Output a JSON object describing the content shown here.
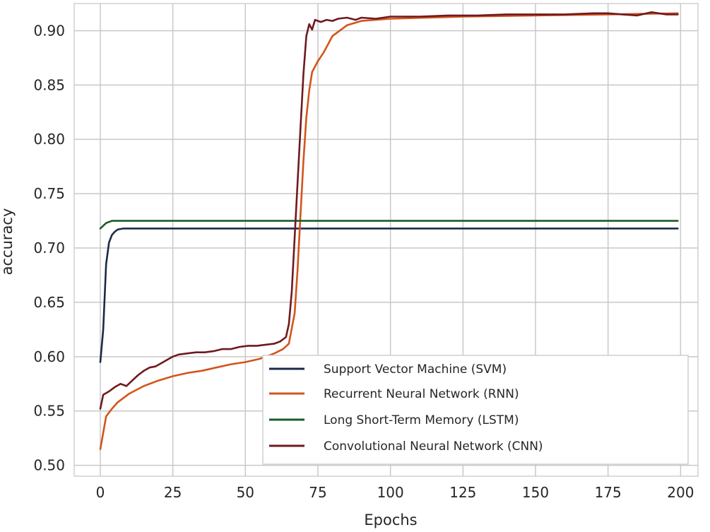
{
  "chart_data": {
    "type": "line",
    "title": "",
    "xlabel": "Epochs",
    "ylabel": "accuracy",
    "xlim": [
      -9,
      206
    ],
    "ylim": [
      0.49,
      0.925
    ],
    "xticks": [
      0,
      25,
      50,
      75,
      100,
      125,
      150,
      175,
      200
    ],
    "yticks": [
      0.5,
      0.55,
      0.6,
      0.65,
      0.7,
      0.75,
      0.8,
      0.85,
      0.9
    ],
    "grid": true,
    "legend_position": "lower-right",
    "series": [
      {
        "name": "Support Vector Machine (SVM)",
        "color": "#1b2a49",
        "points": [
          [
            0,
            0.595
          ],
          [
            1,
            0.625
          ],
          [
            2,
            0.685
          ],
          [
            3,
            0.705
          ],
          [
            4,
            0.712
          ],
          [
            5,
            0.715
          ],
          [
            6,
            0.717
          ],
          [
            8,
            0.718
          ],
          [
            12,
            0.718
          ],
          [
            50,
            0.718
          ],
          [
            100,
            0.718
          ],
          [
            150,
            0.718
          ],
          [
            199,
            0.718
          ]
        ]
      },
      {
        "name": "Recurrent Neural Network (RNN)",
        "color": "#d3541c",
        "points": [
          [
            0,
            0.515
          ],
          [
            1,
            0.53
          ],
          [
            2,
            0.545
          ],
          [
            4,
            0.552
          ],
          [
            6,
            0.558
          ],
          [
            10,
            0.566
          ],
          [
            15,
            0.573
          ],
          [
            20,
            0.578
          ],
          [
            25,
            0.582
          ],
          [
            30,
            0.585
          ],
          [
            35,
            0.587
          ],
          [
            40,
            0.59
          ],
          [
            45,
            0.593
          ],
          [
            50,
            0.595
          ],
          [
            55,
            0.598
          ],
          [
            60,
            0.603
          ],
          [
            63,
            0.607
          ],
          [
            65,
            0.612
          ],
          [
            67,
            0.64
          ],
          [
            68,
            0.68
          ],
          [
            69,
            0.73
          ],
          [
            70,
            0.78
          ],
          [
            71,
            0.82
          ],
          [
            72,
            0.845
          ],
          [
            73,
            0.862
          ],
          [
            75,
            0.872
          ],
          [
            77,
            0.88
          ],
          [
            80,
            0.895
          ],
          [
            85,
            0.905
          ],
          [
            90,
            0.909
          ],
          [
            100,
            0.911
          ],
          [
            125,
            0.913
          ],
          [
            150,
            0.914
          ],
          [
            175,
            0.915
          ],
          [
            199,
            0.916
          ]
        ]
      },
      {
        "name": "Long Short-Term Memory (LSTM)",
        "color": "#1e5a28",
        "points": [
          [
            0,
            0.718
          ],
          [
            2,
            0.723
          ],
          [
            4,
            0.725
          ],
          [
            10,
            0.725
          ],
          [
            50,
            0.725
          ],
          [
            100,
            0.725
          ],
          [
            150,
            0.725
          ],
          [
            199,
            0.725
          ]
        ]
      },
      {
        "name": "Convolutional Neural Network (CNN)",
        "color": "#6e1a1f",
        "points": [
          [
            0,
            0.552
          ],
          [
            1,
            0.565
          ],
          [
            3,
            0.568
          ],
          [
            5,
            0.572
          ],
          [
            7,
            0.575
          ],
          [
            9,
            0.573
          ],
          [
            11,
            0.578
          ],
          [
            13,
            0.583
          ],
          [
            15,
            0.587
          ],
          [
            17,
            0.59
          ],
          [
            19,
            0.591
          ],
          [
            21,
            0.594
          ],
          [
            23,
            0.597
          ],
          [
            25,
            0.6
          ],
          [
            27,
            0.602
          ],
          [
            30,
            0.603
          ],
          [
            33,
            0.604
          ],
          [
            36,
            0.604
          ],
          [
            39,
            0.605
          ],
          [
            42,
            0.607
          ],
          [
            45,
            0.607
          ],
          [
            48,
            0.609
          ],
          [
            51,
            0.61
          ],
          [
            54,
            0.61
          ],
          [
            57,
            0.611
          ],
          [
            60,
            0.612
          ],
          [
            62,
            0.614
          ],
          [
            64,
            0.618
          ],
          [
            65,
            0.63
          ],
          [
            66,
            0.66
          ],
          [
            67,
            0.71
          ],
          [
            68,
            0.76
          ],
          [
            69,
            0.81
          ],
          [
            70,
            0.86
          ],
          [
            71,
            0.895
          ],
          [
            72,
            0.906
          ],
          [
            73,
            0.901
          ],
          [
            74,
            0.91
          ],
          [
            76,
            0.908
          ],
          [
            78,
            0.91
          ],
          [
            80,
            0.909
          ],
          [
            82,
            0.911
          ],
          [
            85,
            0.912
          ],
          [
            88,
            0.91
          ],
          [
            90,
            0.912
          ],
          [
            95,
            0.911
          ],
          [
            100,
            0.913
          ],
          [
            110,
            0.913
          ],
          [
            120,
            0.914
          ],
          [
            130,
            0.914
          ],
          [
            140,
            0.915
          ],
          [
            150,
            0.915
          ],
          [
            160,
            0.915
          ],
          [
            170,
            0.916
          ],
          [
            175,
            0.916
          ],
          [
            180,
            0.915
          ],
          [
            185,
            0.914
          ],
          [
            190,
            0.917
          ],
          [
            195,
            0.915
          ],
          [
            199,
            0.915
          ]
        ]
      }
    ]
  }
}
